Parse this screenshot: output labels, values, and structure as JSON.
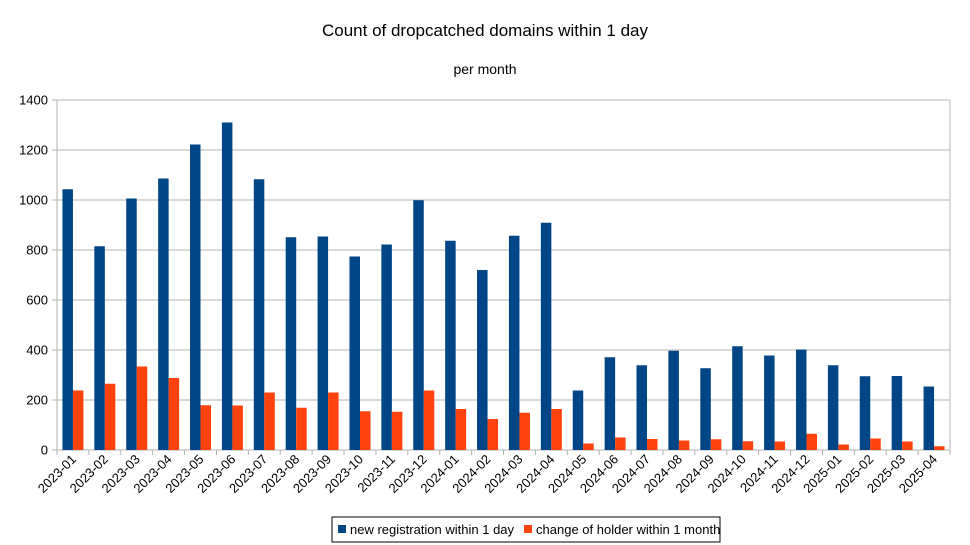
{
  "chart_data": {
    "type": "bar",
    "title": "Count of dropcatched domains within 1 day",
    "subtitle": "per month",
    "xlabel": "",
    "ylabel": "",
    "ylim": [
      0,
      1400
    ],
    "yticks": [
      0,
      200,
      400,
      600,
      800,
      1000,
      1200,
      1400
    ],
    "grid": true,
    "legend_position": "bottom",
    "categories": [
      "2023-01",
      "2023-02",
      "2023-03",
      "2023-04",
      "2023-05",
      "2023-06",
      "2023-07",
      "2023-08",
      "2023-09",
      "2023-10",
      "2023-11",
      "2023-12",
      "2024-01",
      "2024-02",
      "2024-03",
      "2024-04",
      "2024-05",
      "2024-06",
      "2024-07",
      "2024-08",
      "2024-09",
      "2024-10",
      "2024-11",
      "2024-12",
      "2025-01",
      "2025-02",
      "2025-03",
      "2025-04"
    ],
    "series": [
      {
        "name": "new registration within 1 day",
        "color": "#004586",
        "values": [
          1043,
          815,
          1006,
          1086,
          1222,
          1310,
          1083,
          851,
          854,
          774,
          822,
          999,
          837,
          720,
          857,
          909,
          238,
          371,
          339,
          397,
          327,
          415,
          378,
          402,
          339,
          295,
          296,
          254
        ]
      },
      {
        "name": "change of holder within 1 month",
        "color": "#ff420e",
        "values": [
          238,
          265,
          334,
          288,
          179,
          178,
          230,
          169,
          230,
          155,
          153,
          238,
          164,
          124,
          149,
          164,
          26,
          50,
          44,
          38,
          43,
          35,
          34,
          65,
          22,
          46,
          34,
          15
        ]
      }
    ]
  }
}
